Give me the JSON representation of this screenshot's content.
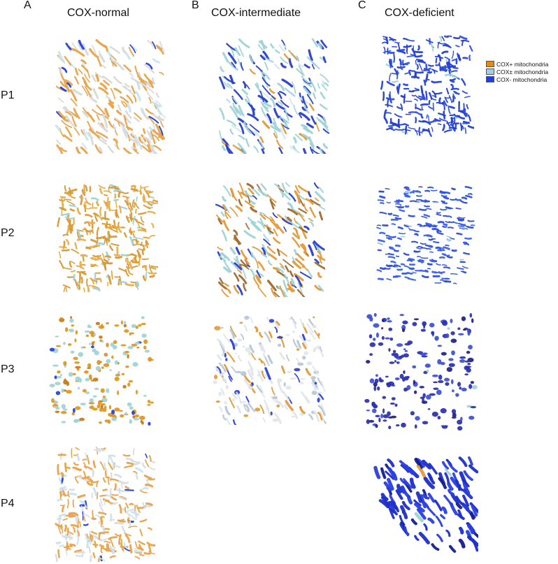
{
  "panels": [
    {
      "letter": "A",
      "title": "COX-normal"
    },
    {
      "letter": "B",
      "title": "COX-intermediate"
    },
    {
      "letter": "C",
      "title": "COX-deficient"
    }
  ],
  "rows": [
    "P1",
    "P2",
    "P3",
    "P4"
  ],
  "legend": [
    {
      "label": "COX+ mitochondria",
      "color": "#e08a1a"
    },
    {
      "label": "COX± mitochondria",
      "color": "#9ccfe8"
    },
    {
      "label": "COX- mitochondria",
      "color": "#1f3fe0"
    }
  ],
  "renders": [
    {
      "id": "A-P1",
      "palette": [
        "#e8a34a",
        "#d9d9d9",
        "#c9e3ef",
        "#1f3fd9"
      ],
      "weights": [
        0.55,
        0.25,
        0.15,
        0.05
      ],
      "style": "strands",
      "density": 230
    },
    {
      "id": "B-P1",
      "palette": [
        "#9fd3d6",
        "#2a3fc9",
        "#e39a3a",
        "#d8e9ee"
      ],
      "weights": [
        0.55,
        0.3,
        0.05,
        0.1
      ],
      "style": "strands",
      "density": 200
    },
    {
      "id": "C-P1",
      "palette": [
        "#2340d8",
        "#3350e6",
        "#9fd3d6"
      ],
      "weights": [
        0.7,
        0.25,
        0.05
      ],
      "style": "mesh",
      "density": 260
    },
    {
      "id": "A-P2",
      "palette": [
        "#d99a36",
        "#e8ad4a",
        "#9fd3d6"
      ],
      "weights": [
        0.55,
        0.35,
        0.1
      ],
      "style": "mesh",
      "density": 300
    },
    {
      "id": "B-P2",
      "palette": [
        "#e39a3a",
        "#9fd3d6",
        "#a06a30",
        "#2a3fc9"
      ],
      "weights": [
        0.4,
        0.35,
        0.15,
        0.1
      ],
      "style": "strands",
      "density": 210
    },
    {
      "id": "C-P2",
      "palette": [
        "#2a4de0",
        "#3b62ec",
        "#9fc3e8"
      ],
      "weights": [
        0.6,
        0.35,
        0.05
      ],
      "style": "dashes",
      "density": 230
    },
    {
      "id": "A-P3",
      "palette": [
        "#e0951f",
        "#9fd3d6",
        "#c47b14",
        "#2a3fc9"
      ],
      "weights": [
        0.5,
        0.35,
        0.12,
        0.03
      ],
      "style": "blobs",
      "density": 200
    },
    {
      "id": "B-P3",
      "palette": [
        "#dfe6ea",
        "#e39a3a",
        "#2a3fd9",
        "#b8c8d4"
      ],
      "weights": [
        0.45,
        0.2,
        0.15,
        0.2
      ],
      "style": "mixed",
      "density": 200
    },
    {
      "id": "C-P3",
      "palette": [
        "#2a2fb0",
        "#3b4fd6",
        "#9fd3d6",
        "#1d1f80"
      ],
      "weights": [
        0.55,
        0.25,
        0.05,
        0.15
      ],
      "style": "blobs",
      "density": 190
    },
    {
      "id": "A-P4",
      "palette": [
        "#e8a34a",
        "#d9dde0",
        "#c9e3ef",
        "#1f3fd9"
      ],
      "weights": [
        0.55,
        0.25,
        0.17,
        0.03
      ],
      "style": "mesh",
      "density": 280
    },
    {
      "id": "C-P4",
      "palette": [
        "#1d2fc8",
        "#2a3fe0",
        "#13208c",
        "#9fd3d6",
        "#e39a3a"
      ],
      "weights": [
        0.5,
        0.3,
        0.16,
        0.03,
        0.01
      ],
      "style": "fan",
      "density": 170
    }
  ]
}
